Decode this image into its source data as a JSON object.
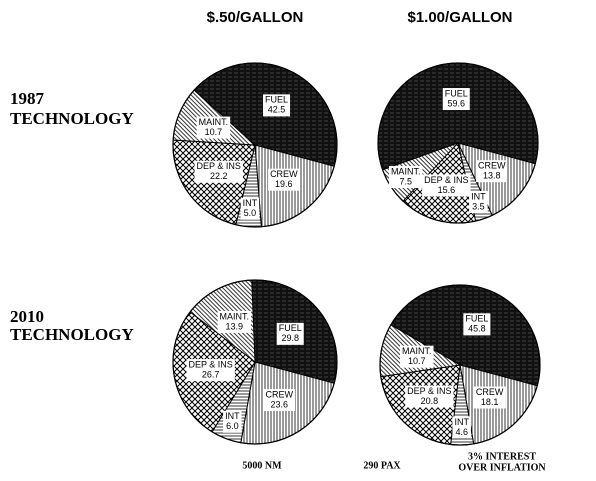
{
  "figure": {
    "columns": [
      "$.50/GALLON",
      "$1.00/GALLON"
    ],
    "rows": [
      [
        "1987",
        "TECHNOLOGY"
      ],
      [
        "2010",
        "TECHNOLOGY"
      ]
    ],
    "footer": [
      "5000 NM",
      "290 PAX",
      [
        "3% INTEREST",
        "OVER INFLATION"
      ]
    ]
  },
  "chart_data": [
    {
      "type": "pie",
      "categories": [
        "FUEL",
        "CREW",
        "INT",
        "DEP & INS",
        "MAINT."
      ],
      "values": [
        42.5,
        19.6,
        5.0,
        22.2,
        10.7
      ],
      "value_labels": [
        "42.5",
        "19.6",
        "5.0",
        "22.2",
        "10.7"
      ]
    },
    {
      "type": "pie",
      "categories": [
        "FUEL",
        "CREW",
        "INT",
        "DEP & INS",
        "MAINT."
      ],
      "values": [
        59.6,
        13.8,
        3.5,
        15.6,
        7.5
      ],
      "value_labels": [
        "59.6",
        "13.8",
        "3.5",
        "15.6",
        "7.5"
      ]
    },
    {
      "type": "pie",
      "categories": [
        "FUEL",
        "CREW",
        "INT",
        "DEP & INS",
        "MAINT."
      ],
      "values": [
        29.8,
        23.6,
        6.0,
        26.7,
        13.9
      ],
      "value_labels": [
        "29.8",
        "23.6",
        "6.0",
        "26.7",
        "13.9"
      ]
    },
    {
      "type": "pie",
      "categories": [
        "FUEL",
        "CREW",
        "INT",
        "DEP & INS",
        "MAINT."
      ],
      "values": [
        45.8,
        18.1,
        4.6,
        20.8,
        10.7
      ],
      "value_labels": [
        "45.8",
        "18.1",
        "4.6",
        "20.8",
        "10.7"
      ]
    }
  ]
}
